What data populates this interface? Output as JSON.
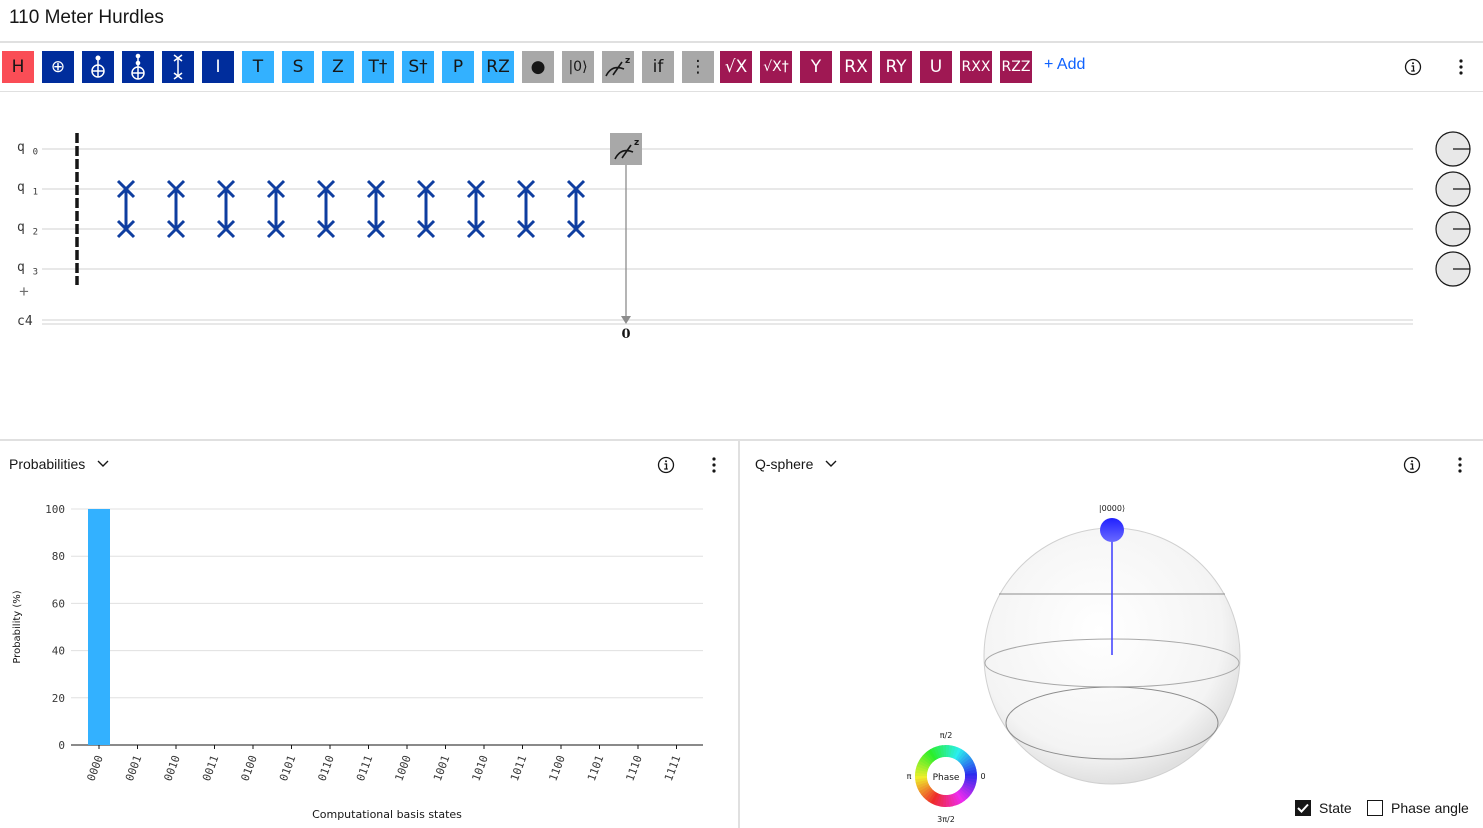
{
  "title": "110 Meter Hurdles",
  "toolbar": {
    "gates": [
      {
        "name": "h",
        "label": "H",
        "color": "#fa4d56",
        "text": "#161616"
      },
      {
        "name": "cnot",
        "label": "⊕",
        "color": "#002d9c",
        "text": "#ffffff"
      },
      {
        "name": "cnot-c",
        "label": "",
        "color": "#002d9c",
        "text": "#ffffff"
      },
      {
        "name": "toffoli",
        "label": "",
        "color": "#002d9c",
        "text": "#ffffff"
      },
      {
        "name": "swap",
        "label": "",
        "color": "#002d9c",
        "text": "#ffffff"
      },
      {
        "name": "i",
        "label": "I",
        "color": "#002d9c",
        "text": "#ffffff"
      },
      {
        "name": "t",
        "label": "T",
        "color": "#33b1ff",
        "text": "#161616"
      },
      {
        "name": "s",
        "label": "S",
        "color": "#33b1ff",
        "text": "#161616"
      },
      {
        "name": "z",
        "label": "Z",
        "color": "#33b1ff",
        "text": "#161616"
      },
      {
        "name": "tdg",
        "label": "T†",
        "color": "#33b1ff",
        "text": "#161616"
      },
      {
        "name": "sdg",
        "label": "S†",
        "color": "#33b1ff",
        "text": "#161616"
      },
      {
        "name": "p",
        "label": "P",
        "color": "#33b1ff",
        "text": "#161616"
      },
      {
        "name": "rz",
        "label": "RZ",
        "color": "#33b1ff",
        "text": "#161616"
      },
      {
        "name": "dot",
        "label": "●",
        "color": "#a8a8a8",
        "text": "#161616"
      },
      {
        "name": "reset",
        "label": "|0⟩",
        "color": "#a8a8a8",
        "text": "#161616"
      },
      {
        "name": "measure",
        "label": "",
        "color": "#a8a8a8",
        "text": "#161616"
      },
      {
        "name": "if",
        "label": "if",
        "color": "#a8a8a8",
        "text": "#161616"
      },
      {
        "name": "barrier",
        "label": "⋮",
        "color": "#a8a8a8",
        "text": "#161616"
      },
      {
        "name": "sx",
        "label": "√X",
        "color": "#9f1853",
        "text": "#ffffff"
      },
      {
        "name": "sxdg",
        "label": "√X†",
        "color": "#9f1853",
        "text": "#ffffff"
      },
      {
        "name": "y",
        "label": "Y",
        "color": "#9f1853",
        "text": "#ffffff"
      },
      {
        "name": "rx",
        "label": "RX",
        "color": "#9f1853",
        "text": "#ffffff"
      },
      {
        "name": "ry",
        "label": "RY",
        "color": "#9f1853",
        "text": "#ffffff"
      },
      {
        "name": "u",
        "label": "U",
        "color": "#9f1853",
        "text": "#ffffff"
      },
      {
        "name": "rxx",
        "label": "RXX",
        "color": "#9f1853",
        "text": "#ffffff"
      },
      {
        "name": "rzz",
        "label": "RZZ",
        "color": "#9f1853",
        "text": "#ffffff"
      }
    ],
    "add_label": "+ Add"
  },
  "circuit": {
    "qubits": [
      {
        "name": "q",
        "index": "0"
      },
      {
        "name": "q",
        "index": "1"
      },
      {
        "name": "q",
        "index": "2"
      },
      {
        "name": "q",
        "index": "3"
      }
    ],
    "classical": "c4",
    "measure_target": "0",
    "swap_count": 10
  },
  "probabilities": {
    "title": "Probabilities",
    "chart_data": {
      "type": "bar",
      "categories": [
        "0000",
        "0001",
        "0010",
        "0011",
        "0100",
        "0101",
        "0110",
        "0111",
        "1000",
        "1001",
        "1010",
        "1011",
        "1100",
        "1101",
        "1110",
        "1111"
      ],
      "values": [
        100,
        0,
        0,
        0,
        0,
        0,
        0,
        0,
        0,
        0,
        0,
        0,
        0,
        0,
        0,
        0
      ],
      "xlabel": "Computational basis states",
      "ylabel": "Probability (%)",
      "yticks": [
        0,
        20,
        40,
        60,
        80,
        100
      ],
      "ylim": [
        0,
        100
      ],
      "bar_color": "#33b1ff",
      "grid": true
    }
  },
  "qsphere": {
    "title": "Q-sphere",
    "state_label": "|0000⟩",
    "state_color": "#3b3bff",
    "phase": {
      "label": "Phase",
      "top": "π/2",
      "left": "π",
      "right": "0",
      "bottom": "3π/2"
    },
    "checks": [
      {
        "label": "State",
        "checked": true
      },
      {
        "label": "Phase angle",
        "checked": false
      }
    ]
  }
}
